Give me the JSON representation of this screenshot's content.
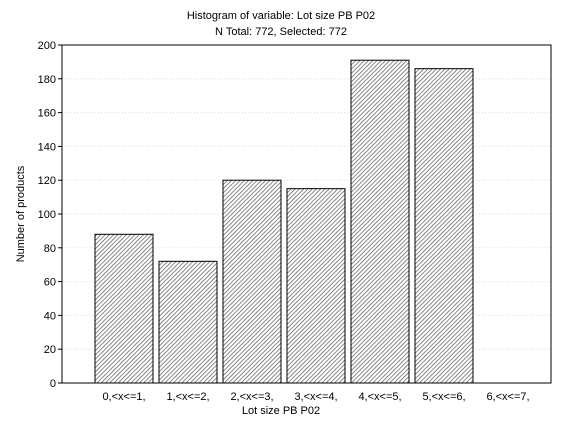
{
  "chart_data": {
    "type": "bar",
    "title": "Histogram of variable: Lot size PB P02",
    "subtitle": "N Total: 772, Selected: 772",
    "xlabel": "Lot size PB P02",
    "ylabel": "Number of products",
    "categories": [
      "0,<x<=1,",
      "1,<x<=2,",
      "2,<x<=3,",
      "3,<x<=4,",
      "4,<x<=5,",
      "5,<x<=6,",
      "6,<x<=7,"
    ],
    "values": [
      88,
      72,
      120,
      115,
      191,
      186,
      0
    ],
    "ylim": [
      0,
      200
    ],
    "yticks": [
      0,
      20,
      40,
      60,
      80,
      100,
      120,
      140,
      160,
      180,
      200
    ],
    "grid": true,
    "legend": "none",
    "colors": {
      "bar_fill_pattern": "diagonal-hatch",
      "bar_fill_base": "#c8c8c8",
      "bar_stroke": "#000000",
      "grid": "#d9d9d9",
      "axis": "#000000"
    }
  }
}
